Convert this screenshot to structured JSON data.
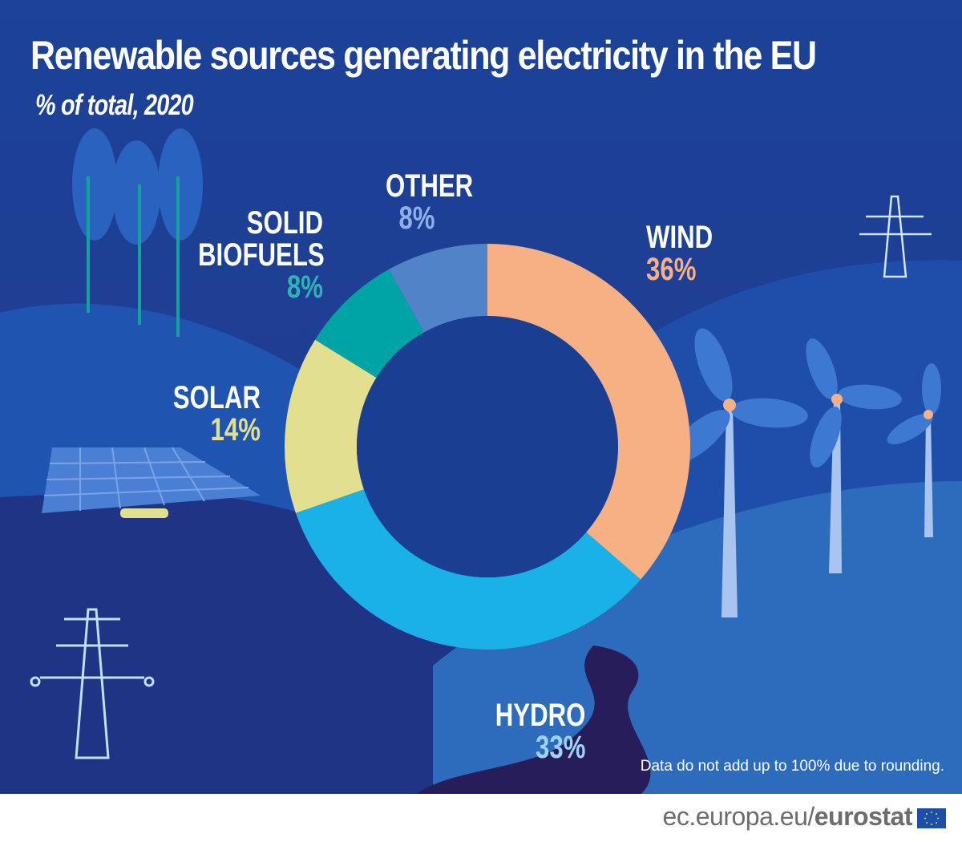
{
  "title": "Renewable sources generating electricity in the EU",
  "subtitle": "% of total, 2020",
  "note": "Data do not add up to 100% due to rounding.",
  "footer": {
    "url_prefix": "ec.europa.eu/",
    "url_brand": "eurostat",
    "logo": "eu-flag-icon"
  },
  "colors": {
    "background": "#1b3f94",
    "center": "#1a3f92"
  },
  "chart_data": {
    "type": "pie",
    "variant": "donut",
    "title": "Renewable sources generating electricity in the EU",
    "subtitle": "% of total, 2020",
    "unit": "%",
    "start": "top, clockwise",
    "categories": [
      "WIND",
      "HYDRO",
      "SOLAR",
      "SOLID BIOFUELS",
      "OTHER"
    ],
    "values": [
      36,
      33,
      14,
      8,
      8
    ],
    "value_labels": [
      "36%",
      "33%",
      "14%",
      "8%",
      "8%"
    ],
    "colors": [
      "#f7b084",
      "#1ab0e8",
      "#e2e08f",
      "#00a4a6",
      "#5083c8"
    ]
  }
}
